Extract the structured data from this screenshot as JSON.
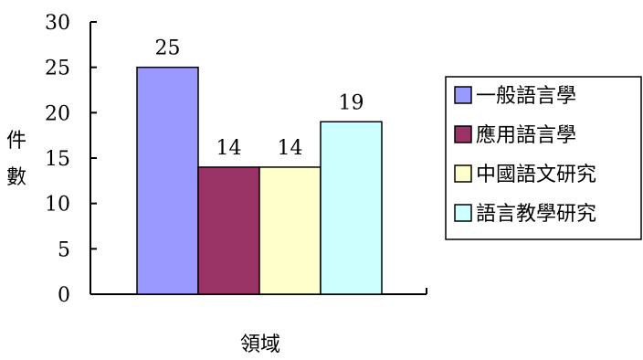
{
  "chart_data": {
    "type": "bar",
    "categories": [
      "一般語言學",
      "應用語言學",
      "中國語文研究",
      "語言教學研究"
    ],
    "values": [
      25,
      14,
      14,
      19
    ],
    "data_labels": [
      "25",
      "14",
      "14",
      "19"
    ],
    "title": "",
    "xlabel": "領域",
    "ylabel": "件數",
    "ylim": [
      0,
      30
    ],
    "yticks": [
      0,
      5,
      10,
      15,
      20,
      25,
      30
    ],
    "grid": false,
    "legend_position": "right",
    "colors": [
      "#9999FF",
      "#993366",
      "#FFFFCC",
      "#CCFFFF"
    ],
    "legend": [
      {
        "label": "一般語言學",
        "color": "#9999FF"
      },
      {
        "label": "應用語言學",
        "color": "#993366"
      },
      {
        "label": "中國語文研究",
        "color": "#FFFFCC"
      },
      {
        "label": "語言教學研究",
        "color": "#CCFFFF"
      }
    ]
  }
}
